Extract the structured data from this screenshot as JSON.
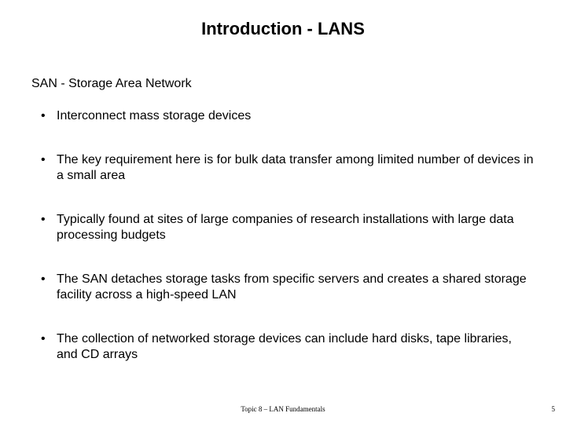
{
  "title": "Introduction - LANS",
  "subtitle": "SAN - Storage Area Network",
  "bullets": [
    "Interconnect mass storage devices",
    "The key requirement here is for bulk data transfer among limited number of devices in a small area",
    "Typically found at sites of large companies of research installations with large data processing budgets",
    "The SAN detaches storage tasks from specific servers and creates a shared storage facility across a high-speed LAN",
    "The collection of networked storage devices can include  hard disks, tape libraries, and CD arrays"
  ],
  "footer": "Topic 8 – LAN Fundamentals",
  "page_number": "5",
  "styles": {
    "background_color": "#ffffff",
    "text_color": "#000000",
    "title_fontsize": 22,
    "title_weight": "bold",
    "subtitle_fontsize": 16,
    "body_fontsize": 16,
    "footer_fontsize": 9,
    "font_family": "Arial"
  }
}
